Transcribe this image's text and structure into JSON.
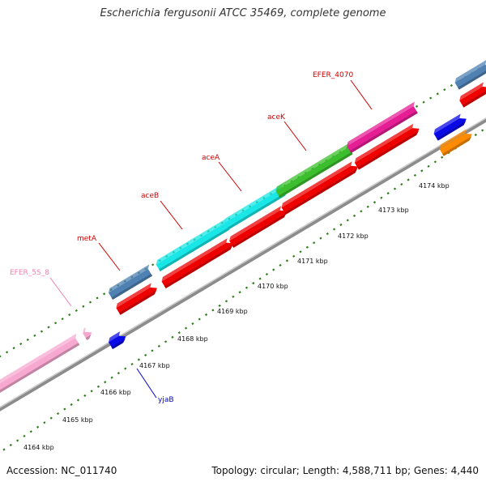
{
  "title": "Escherichia fergusonii ATCC 35469, complete genome",
  "footer": {
    "accession": "Accession: NC_011740",
    "summary": "Topology: circular; Length: 4,588,711 bp; Genes: 4,440"
  },
  "colors": {
    "backbone": "#8c8c8c",
    "tick_mark": "#2e7d1a",
    "label_text": "#111111"
  },
  "genes": [
    {
      "name": "EFER_5S_8",
      "color": "#f7a8d0",
      "label_color": "#f080b0"
    },
    {
      "name": "metA",
      "color": "#4f81b3",
      "label_color": "#cc0000"
    },
    {
      "name": "aceB",
      "color": "#19e6e6",
      "label_color": "#cc0000"
    },
    {
      "name": "aceA",
      "color": "#19e6e6",
      "label_color": "#cc0000"
    },
    {
      "name": "aceK",
      "color": "#3cbf2e",
      "label_color": "#cc0000"
    },
    {
      "name": "EFER_4070",
      "color": "#e61e96",
      "label_color": "#cc0000"
    },
    {
      "name": "yjaB",
      "color": "#0a0ae6",
      "label_color": "#0000cc"
    }
  ],
  "other_features": [
    {
      "kind": "CDS",
      "color": "#ee0000"
    },
    {
      "kind": "CDS",
      "color": "#0a0ae6"
    },
    {
      "kind": "CDS",
      "color": "#ff8c00"
    }
  ],
  "scale": {
    "unit": "kbp",
    "ticks": [
      "4164 kbp",
      "4165 kbp",
      "4166 kbp",
      "4167 kbp",
      "4168 kbp",
      "4169 kbp",
      "4170 kbp",
      "4171 kbp",
      "4172 kbp",
      "4173 kbp",
      "4174 kbp"
    ]
  }
}
